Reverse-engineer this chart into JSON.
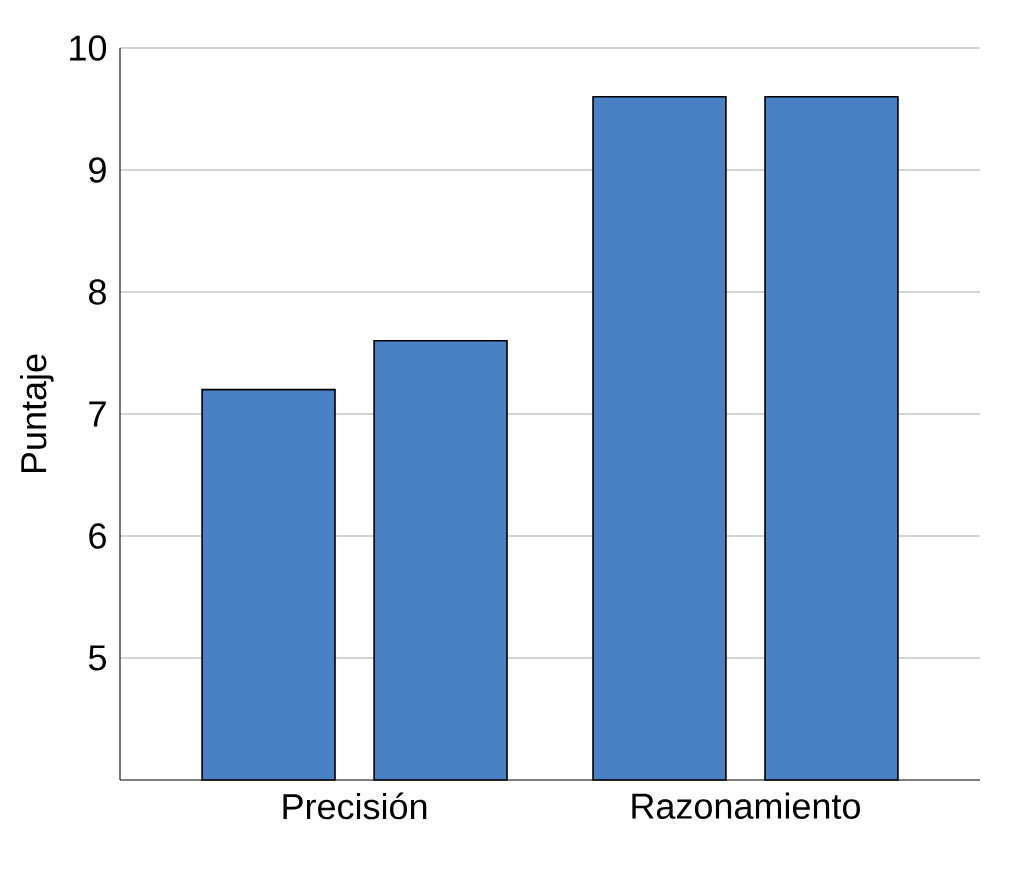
{
  "chart_data": {
    "type": "bar",
    "ylabel": "Puntaje",
    "categories": [
      "Precisión",
      "Razonamiento"
    ],
    "series": [
      {
        "color": "#4a80c4",
        "values": [
          7.2,
          9.6
        ]
      },
      {
        "color": "#4a80c4",
        "values": [
          7.6,
          9.6
        ]
      }
    ],
    "ylim": [
      4,
      10
    ],
    "yticks": [
      5,
      6,
      7,
      8,
      9,
      10
    ],
    "grid": "y"
  }
}
